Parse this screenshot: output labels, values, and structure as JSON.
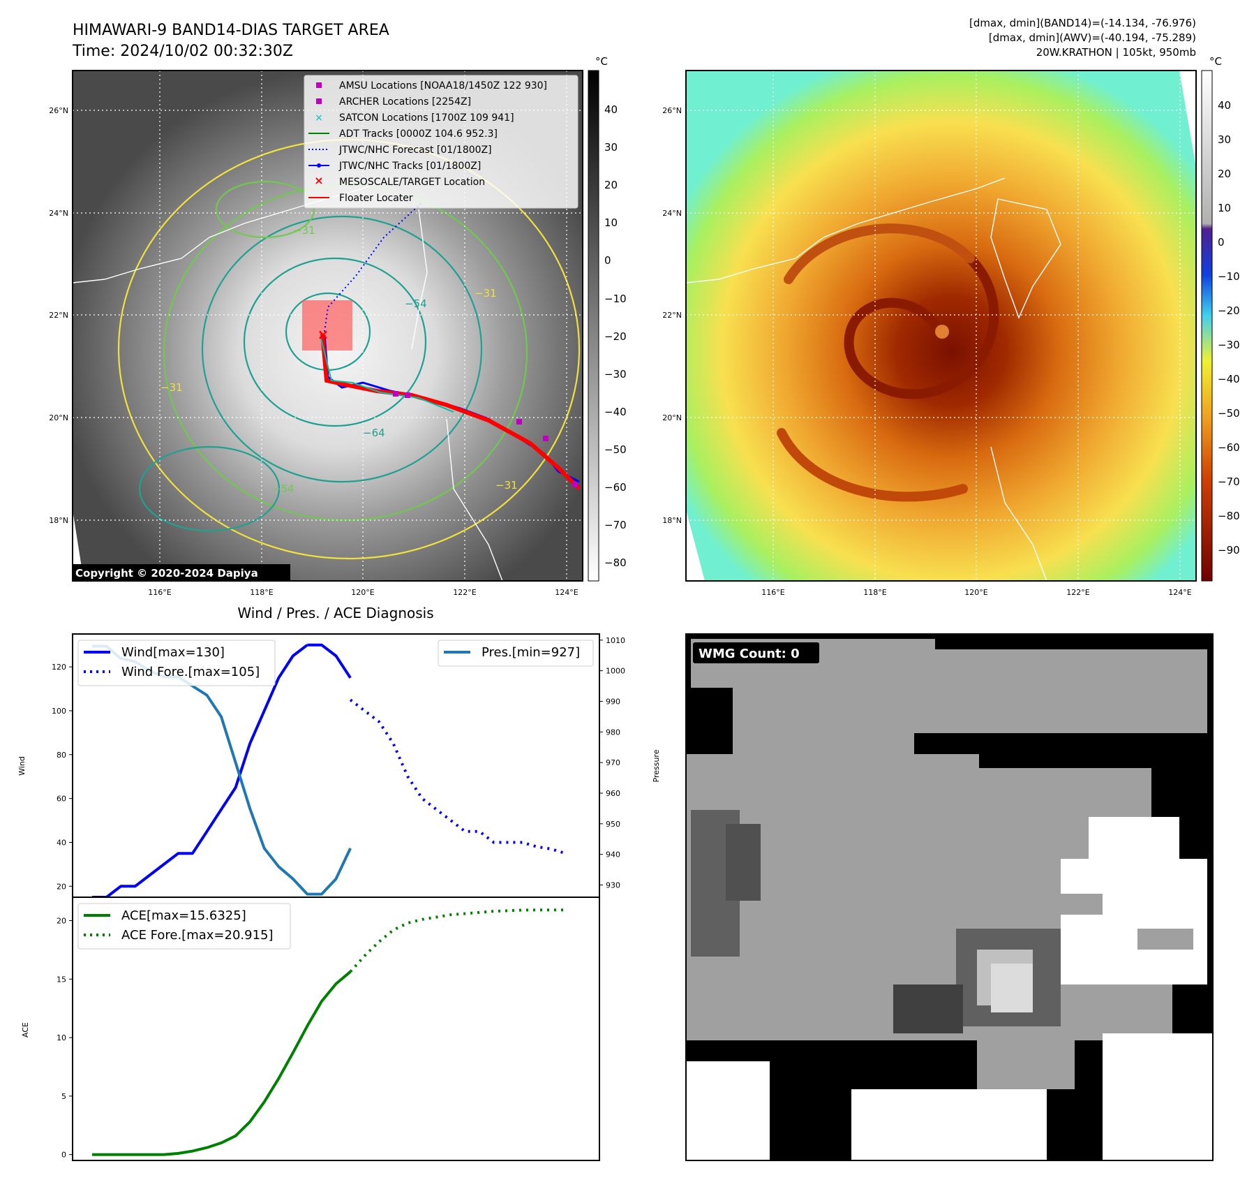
{
  "header": {
    "title": "HIMAWARI-9 BAND14-DIAS TARGET AREA",
    "time": "Time: 2024/10/02 00:32:30Z",
    "info": [
      "[dmax, dmin](BAND14)=(-14.134, -76.976)",
      "[dmax, dmin](AWV)=(-40.194, -75.289)",
      "20W.KRATHON | 105kt, 950mb"
    ]
  },
  "colors": {
    "wind": "#0000ff",
    "pressure": "#1f77b4",
    "ace": "#008000",
    "amsu": "#c000c0",
    "satcon": "#00c0c0",
    "jtwc": "#0000ff",
    "floater": "#ff0000",
    "contour_yellow": "#f0e040",
    "contour_green": "#70c850",
    "contour_teal": "#20a090"
  },
  "map_left": {
    "lat_labels": [
      "26°N",
      "24°N",
      "22°N",
      "20°N",
      "18°N"
    ],
    "lon_labels": [
      "116°E",
      "118°E",
      "120°E",
      "122°E",
      "124°E"
    ],
    "colorbar_unit": "°C",
    "colorbar_ticks": [
      "40",
      "30",
      "20",
      "10",
      "0",
      "−10",
      "−20",
      "−30",
      "−40",
      "−50",
      "−60",
      "−70",
      "−80"
    ],
    "contour_labels": [
      "−31",
      "−31",
      "−54",
      "−54",
      "−64",
      "−31",
      "−31"
    ],
    "copyright": "Copyright © 2020-2024 Dapiya",
    "legend": [
      "AMSU Locations [NOAA18/1450Z 122 930]",
      "ARCHER Locations [2254Z]",
      "SATCON Locations [1700Z 109 941]",
      "ADT Tracks [0000Z 104.6 952.3]",
      "JTWC/NHC Forecast [01/1800Z]",
      "JTWC/NHC Tracks [01/1800Z]",
      "MESOSCALE/TARGET Location",
      "Floater Locater"
    ]
  },
  "map_right": {
    "lat_labels": [
      "26°N",
      "24°N",
      "22°N",
      "20°N",
      "18°N"
    ],
    "lon_labels": [
      "116°E",
      "118°E",
      "120°E",
      "122°E",
      "124°E"
    ],
    "colorbar_unit": "°C",
    "colorbar_ticks": [
      "40",
      "30",
      "20",
      "10",
      "0",
      "−10",
      "−20",
      "−30",
      "−40",
      "−50",
      "−60",
      "−70",
      "−80",
      "−90"
    ]
  },
  "wmg": {
    "label": "WMG Count: 0"
  },
  "chart_data": [
    {
      "type": "line",
      "title": "Wind / Pres. / ACE Diagnosis",
      "ylabel": "Wind",
      "y2label": "Pressure",
      "ylim": [
        15,
        135
      ],
      "y_ticks": [
        20,
        40,
        60,
        80,
        100,
        120
      ],
      "y2lim": [
        926,
        1012
      ],
      "y2_ticks": [
        930,
        940,
        950,
        960,
        970,
        980,
        990,
        1000,
        1010
      ],
      "series": [
        {
          "name": "Wind[max=130]",
          "style": "solid",
          "x": [
            0,
            1,
            2,
            3,
            4,
            5,
            6,
            7,
            8,
            9,
            10,
            11,
            12,
            13,
            14,
            15
          ],
          "values": [
            15,
            15,
            20,
            20,
            25,
            30,
            35,
            35,
            45,
            55,
            65,
            85,
            100,
            115,
            125,
            130
          ]
        },
        {
          "name": "Wind[max=130]",
          "style": "solid",
          "x": [
            15,
            16,
            17,
            18
          ],
          "values": [
            130,
            130,
            125,
            115
          ]
        },
        {
          "name": "Wind Fore.[max=105]",
          "style": "dotted",
          "x": [
            18,
            19,
            20,
            21,
            22,
            23,
            24,
            25,
            26,
            27,
            28,
            29,
            30,
            31,
            32,
            33
          ],
          "values": [
            105,
            100,
            95,
            85,
            70,
            60,
            55,
            50,
            45,
            45,
            40,
            40,
            40,
            38,
            37,
            35
          ]
        },
        {
          "name": "Pres.[min=927]",
          "style": "solid",
          "axis": "right",
          "x": [
            0,
            1,
            2,
            3,
            4,
            5,
            6,
            7,
            8,
            9,
            10,
            11,
            12,
            13,
            14,
            15,
            16,
            17,
            18
          ],
          "values": [
            1008,
            1008,
            1004,
            1003,
            1000,
            998,
            998,
            995,
            992,
            985,
            970,
            955,
            942,
            936,
            932,
            927,
            927,
            932,
            942
          ]
        }
      ]
    },
    {
      "type": "line",
      "ylabel": "ACE",
      "ylim": [
        -0.5,
        22
      ],
      "y_ticks": [
        0,
        5,
        10,
        15,
        20
      ],
      "series": [
        {
          "name": "ACE[max=15.6325]",
          "style": "solid",
          "x": [
            0,
            1,
            2,
            3,
            4,
            5,
            6,
            7,
            8,
            9,
            10,
            11,
            12,
            13,
            14,
            15,
            16,
            17,
            18
          ],
          "values": [
            0,
            0,
            0,
            0,
            0,
            0,
            0.1,
            0.3,
            0.6,
            1.0,
            1.6,
            2.8,
            4.5,
            6.5,
            8.7,
            11.0,
            13.1,
            14.6,
            15.6325
          ]
        },
        {
          "name": "ACE Fore.[max=20.915]",
          "style": "dotted",
          "x": [
            18,
            19,
            20,
            21,
            22,
            23,
            24,
            25,
            26,
            27,
            28,
            29,
            30,
            31,
            32,
            33
          ],
          "values": [
            15.6325,
            17.0,
            18.2,
            19.2,
            19.8,
            20.1,
            20.3,
            20.5,
            20.6,
            20.7,
            20.8,
            20.85,
            20.9,
            20.91,
            20.915,
            20.915
          ]
        }
      ]
    }
  ]
}
